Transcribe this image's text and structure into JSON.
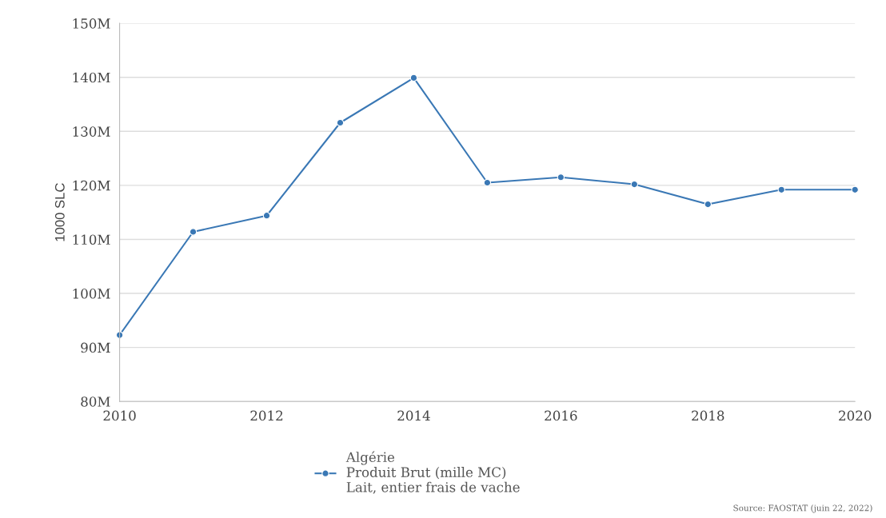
{
  "chart_data": {
    "type": "line",
    "ylabel": "1000 SLC",
    "x": [
      2010,
      2011,
      2012,
      2013,
      2014,
      2015,
      2016,
      2017,
      2018,
      2019,
      2020
    ],
    "series": [
      {
        "name": "Algérie\nProduit Brut (mille MC)\nLait, entier frais de vache",
        "color": "#3a78b5",
        "values": [
          92.3,
          111.4,
          114.4,
          131.6,
          139.9,
          120.5,
          121.5,
          120.2,
          116.5,
          119.2,
          119.2
        ]
      }
    ],
    "xlim": [
      2010,
      2020
    ],
    "xticks": [
      2010,
      2012,
      2014,
      2016,
      2018,
      2020
    ],
    "ylim": [
      80,
      150
    ],
    "yticks": [
      {
        "value": 80,
        "label": "80M"
      },
      {
        "value": 90,
        "label": "90M"
      },
      {
        "value": 100,
        "label": "100M"
      },
      {
        "value": 110,
        "label": "110M"
      },
      {
        "value": 120,
        "label": "120M"
      },
      {
        "value": 130,
        "label": "130M"
      },
      {
        "value": 140,
        "label": "140M"
      },
      {
        "value": 150,
        "label": "150M"
      }
    ],
    "grid": "y",
    "legend": "bottom",
    "marker": "circle",
    "line_style": "solid",
    "annotations": [
      "Source: FAOSTAT (juin 22, 2022)"
    ]
  }
}
